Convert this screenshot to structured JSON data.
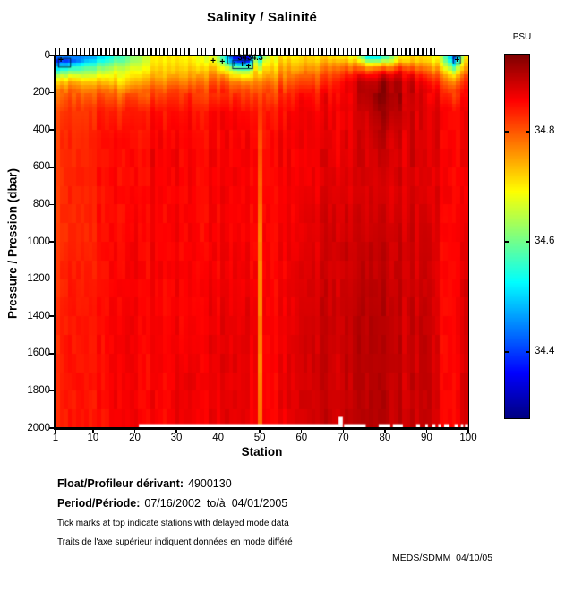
{
  "title": "Salinity / Salinité",
  "colorbar": {
    "label": "PSU",
    "tick_values": [
      34.8,
      34.6,
      34.4
    ],
    "tick_labels": [
      "34.8",
      "34.6",
      "34.4"
    ],
    "vmin": 34.28,
    "vmax": 34.94
  },
  "axes": {
    "x_label": "Station",
    "y_label": "Pressure / Pression (dbar)",
    "x_tick_values": [
      1,
      10,
      20,
      30,
      40,
      50,
      60,
      70,
      80,
      90,
      100
    ],
    "y_tick_values": [
      0,
      200,
      400,
      600,
      800,
      1000,
      1200,
      1400,
      1600,
      1800,
      2000
    ],
    "x_range": [
      1,
      100
    ],
    "y_range": [
      0,
      2000
    ]
  },
  "footer": {
    "float_label": "Float/Profileur dérivant:",
    "float_value": "4900130",
    "period_label": "Period/Période:",
    "period_value": "07/16/2002  to/à  04/01/2005",
    "note_en": "Tick marks at top indicate stations with delayed mode data",
    "note_fr": "Traits de l'axe supérieur indiquent données en  mode différé",
    "credit": "MEDS/SDMM  04/10/05"
  },
  "chart_data": {
    "type": "heatmap",
    "title": "Salinity / Salinité",
    "xlabel": "Station",
    "ylabel": "Pressure / Pression (dbar)",
    "units": "PSU",
    "colormap": "jet",
    "vmin": 34.28,
    "vmax": 34.94,
    "x_range": [
      1,
      100
    ],
    "y_range": [
      0,
      2000
    ],
    "colorbar_ticks": [
      34.8,
      34.6,
      34.4
    ],
    "delayed_mode_tick_stations": [
      1,
      92
    ],
    "stations": [
      1,
      4,
      8,
      12,
      16,
      20,
      24,
      28,
      32,
      36,
      40,
      44,
      47,
      49,
      50,
      51,
      53,
      57,
      61,
      65,
      69,
      73,
      76,
      79,
      82,
      85,
      88,
      91,
      94,
      97,
      100
    ],
    "pressures": [
      0,
      30,
      60,
      100,
      150,
      200,
      300,
      450,
      700,
      1000,
      1400,
      1700,
      2000
    ],
    "salinity": [
      [
        34.46,
        34.4,
        34.5,
        34.62,
        34.72,
        34.78,
        34.81,
        34.82,
        34.82,
        34.82,
        34.83,
        34.83,
        34.83
      ],
      [
        34.45,
        34.4,
        34.52,
        34.64,
        34.74,
        34.79,
        34.82,
        34.83,
        34.83,
        34.83,
        34.84,
        34.84,
        34.84
      ],
      [
        34.46,
        34.5,
        34.58,
        34.66,
        34.75,
        34.8,
        34.83,
        34.84,
        34.84,
        34.84,
        34.85,
        34.85,
        34.85
      ],
      [
        34.5,
        34.54,
        34.6,
        34.67,
        34.74,
        34.8,
        34.84,
        34.85,
        34.85,
        34.85,
        34.85,
        34.85,
        34.85
      ],
      [
        34.56,
        34.58,
        34.63,
        34.68,
        34.72,
        34.78,
        34.83,
        34.85,
        34.85,
        34.85,
        34.86,
        34.86,
        34.86
      ],
      [
        34.62,
        34.63,
        34.66,
        34.7,
        34.75,
        34.8,
        34.84,
        34.85,
        34.85,
        34.86,
        34.86,
        34.86,
        34.86
      ],
      [
        34.69,
        34.69,
        34.7,
        34.73,
        34.77,
        34.81,
        34.85,
        34.86,
        34.86,
        34.86,
        34.86,
        34.86,
        34.86
      ],
      [
        34.71,
        34.71,
        34.72,
        34.74,
        34.78,
        34.82,
        34.85,
        34.86,
        34.86,
        34.86,
        34.86,
        34.86,
        34.86
      ],
      [
        34.7,
        34.71,
        34.72,
        34.75,
        34.79,
        34.83,
        34.85,
        34.86,
        34.86,
        34.86,
        34.86,
        34.87,
        34.87
      ],
      [
        34.69,
        34.7,
        34.72,
        34.76,
        34.8,
        34.83,
        34.85,
        34.86,
        34.86,
        34.86,
        34.87,
        34.87,
        34.87
      ],
      [
        34.64,
        34.66,
        34.71,
        34.76,
        34.8,
        34.83,
        34.86,
        34.86,
        34.86,
        34.86,
        34.87,
        34.87,
        34.87
      ],
      [
        34.34,
        34.4,
        34.56,
        34.69,
        34.78,
        34.82,
        34.85,
        34.86,
        34.86,
        34.86,
        34.87,
        34.87,
        34.87
      ],
      [
        34.31,
        34.36,
        34.52,
        34.67,
        34.77,
        34.82,
        34.85,
        34.86,
        34.86,
        34.86,
        34.87,
        34.87,
        34.87
      ],
      [
        34.55,
        34.62,
        34.67,
        34.73,
        34.78,
        34.81,
        34.84,
        34.85,
        34.85,
        34.85,
        34.86,
        34.86,
        34.86
      ],
      [
        34.5,
        34.58,
        34.65,
        34.72,
        34.78,
        34.81,
        34.83,
        34.82,
        34.8,
        34.78,
        34.78,
        34.78,
        34.79
      ],
      [
        34.6,
        34.66,
        34.7,
        34.74,
        34.79,
        34.82,
        34.84,
        34.85,
        34.85,
        34.86,
        34.86,
        34.86,
        34.86
      ],
      [
        34.69,
        34.7,
        34.72,
        34.75,
        34.79,
        34.82,
        34.85,
        34.86,
        34.86,
        34.86,
        34.86,
        34.86,
        34.86
      ],
      [
        34.7,
        34.72,
        34.74,
        34.77,
        34.8,
        34.83,
        34.85,
        34.86,
        34.86,
        34.86,
        34.87,
        34.87,
        34.87
      ],
      [
        34.71,
        34.72,
        34.74,
        34.78,
        34.81,
        34.84,
        34.86,
        34.86,
        34.86,
        34.87,
        34.88,
        34.88,
        34.88
      ],
      [
        34.72,
        34.74,
        34.77,
        34.8,
        34.82,
        34.85,
        34.86,
        34.87,
        34.87,
        34.88,
        34.89,
        34.89,
        34.89
      ],
      [
        34.71,
        34.74,
        34.78,
        34.82,
        34.85,
        34.86,
        34.87,
        34.87,
        34.88,
        34.89,
        34.89,
        34.89,
        34.89
      ],
      [
        34.69,
        34.73,
        34.79,
        34.85,
        34.88,
        34.88,
        34.88,
        34.88,
        34.88,
        34.89,
        34.9,
        34.9,
        34.9
      ],
      [
        34.5,
        34.62,
        34.74,
        34.84,
        34.89,
        34.9,
        34.89,
        34.88,
        34.88,
        34.89,
        34.9,
        34.9,
        34.9
      ],
      [
        34.48,
        34.6,
        34.74,
        34.86,
        34.91,
        34.92,
        34.91,
        34.89,
        34.88,
        34.89,
        34.9,
        34.9,
        34.9
      ],
      [
        34.62,
        34.68,
        34.78,
        34.88,
        34.92,
        34.92,
        34.91,
        34.89,
        34.88,
        34.89,
        34.9,
        34.9,
        34.9
      ],
      [
        34.71,
        34.73,
        34.8,
        34.87,
        34.9,
        34.9,
        34.89,
        34.88,
        34.88,
        34.89,
        34.89,
        34.89,
        34.89
      ],
      [
        34.72,
        34.73,
        34.78,
        34.84,
        34.87,
        34.88,
        34.88,
        34.88,
        34.88,
        34.88,
        34.89,
        34.89,
        34.89
      ],
      [
        34.71,
        34.72,
        34.76,
        34.81,
        34.85,
        34.87,
        34.88,
        34.88,
        34.88,
        34.89,
        34.9,
        34.9,
        34.9
      ],
      [
        34.66,
        34.68,
        34.72,
        34.78,
        34.82,
        34.85,
        34.87,
        34.87,
        34.87,
        34.86,
        34.86,
        34.86,
        34.86
      ],
      [
        34.42,
        34.48,
        34.58,
        34.7,
        34.78,
        34.83,
        34.86,
        34.86,
        34.86,
        34.86,
        34.86,
        34.86,
        34.86
      ],
      [
        34.7,
        34.72,
        34.75,
        34.79,
        34.82,
        34.84,
        34.86,
        34.86,
        34.86,
        34.87,
        34.88,
        34.88,
        34.88
      ]
    ],
    "annotations": {
      "marker_glyph": "+",
      "plus_markers": [
        {
          "station": 2.3,
          "pressure": 30
        },
        {
          "station": 38.8,
          "pressure": 35
        },
        {
          "station": 41.0,
          "pressure": 40
        },
        {
          "station": 44.0,
          "pressure": 52
        },
        {
          "station": 45.8,
          "pressure": 55
        },
        {
          "station": 47.3,
          "pressure": 63
        },
        {
          "station": 97.3,
          "pressure": 30
        }
      ],
      "contour_labels": [
        {
          "text": "34",
          "station": 45.8,
          "pressure": 12
        },
        {
          "text": "34.3",
          "station": 48.9,
          "pressure": 12
        }
      ],
      "contour_outlines": [
        {
          "stations": [
            1.7,
            4.6
          ],
          "pressures": [
            15,
            62
          ]
        },
        {
          "stations": [
            42.3,
            46.5
          ],
          "pressures": [
            5,
            45
          ]
        },
        {
          "stations": [
            43.5,
            48.3
          ],
          "pressures": [
            25,
            70
          ]
        },
        {
          "stations": [
            96.4,
            98.1
          ],
          "pressures": [
            8,
            45
          ]
        }
      ]
    },
    "missing_bottom_segments": [
      [
        21,
        69
      ],
      [
        70.2,
        75.4
      ],
      [
        78.5,
        81.3
      ],
      [
        81.9,
        84.3
      ],
      [
        87.5,
        88.4
      ],
      [
        89.7,
        90.3
      ],
      [
        91.4,
        92.1
      ],
      [
        92.8,
        93.4
      ],
      [
        94.2,
        95.5
      ],
      [
        96.7,
        97.5
      ],
      [
        98.2,
        98.8
      ],
      [
        99.2,
        99.9
      ]
    ],
    "missing_notch": {
      "station": 69.4,
      "pressure_from": 1940
    }
  }
}
